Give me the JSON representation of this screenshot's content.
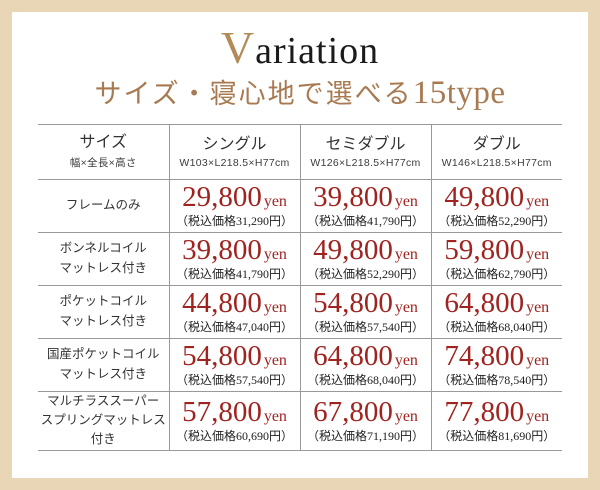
{
  "colors": {
    "frame": "#e9d6b6",
    "title_initial": "#b28b57",
    "subtitle": "#a87a52",
    "price": "#9f2420",
    "grid_line": "#999999"
  },
  "header": {
    "title_initial": "V",
    "title_rest": "ariation",
    "subtitle_main": "サイズ・寝心地で選べる",
    "subtitle_count": "15type"
  },
  "table": {
    "price_unit": "yen",
    "columns": [
      {
        "label": "サイズ",
        "sub": "幅×全長×高さ"
      },
      {
        "label": "シングル",
        "sub": "W103×L218.5×H77cm"
      },
      {
        "label": "セミダブル",
        "sub": "W126×L218.5×H77cm"
      },
      {
        "label": "ダブル",
        "sub": "W146×L218.5×H77cm"
      }
    ],
    "rows": [
      {
        "label": "フレームのみ",
        "prices": [
          {
            "amount": "29,800",
            "tax": "（税込価格31,290円）"
          },
          {
            "amount": "39,800",
            "tax": "（税込価格41,790円）"
          },
          {
            "amount": "49,800",
            "tax": "（税込価格52,290円）"
          }
        ]
      },
      {
        "label": "ボンネルコイル\nマットレス付き",
        "prices": [
          {
            "amount": "39,800",
            "tax": "（税込価格41,790円）"
          },
          {
            "amount": "49,800",
            "tax": "（税込価格52,290円）"
          },
          {
            "amount": "59,800",
            "tax": "（税込価格62,790円）"
          }
        ]
      },
      {
        "label": "ポケットコイル\nマットレス付き",
        "prices": [
          {
            "amount": "44,800",
            "tax": "（税込価格47,040円）"
          },
          {
            "amount": "54,800",
            "tax": "（税込価格57,540円）"
          },
          {
            "amount": "64,800",
            "tax": "（税込価格68,040円）"
          }
        ]
      },
      {
        "label": "国産ポケットコイル\nマットレス付き",
        "prices": [
          {
            "amount": "54,800",
            "tax": "（税込価格57,540円）"
          },
          {
            "amount": "64,800",
            "tax": "（税込価格68,040円）"
          },
          {
            "amount": "74,800",
            "tax": "（税込価格78,540円）"
          }
        ]
      },
      {
        "label": "マルチラススーパー\nスプリングマットレス付き",
        "prices": [
          {
            "amount": "57,800",
            "tax": "（税込価格60,690円）"
          },
          {
            "amount": "67,800",
            "tax": "（税込価格71,190円）"
          },
          {
            "amount": "77,800",
            "tax": "（税込価格81,690円）"
          }
        ]
      }
    ]
  }
}
